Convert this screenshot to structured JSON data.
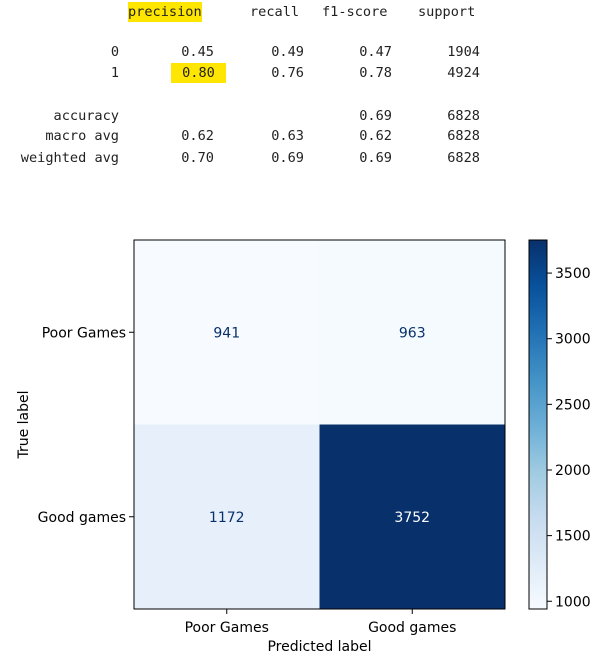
{
  "report": {
    "headers": [
      "precision",
      "recall",
      "f1-score",
      "support"
    ],
    "rows": [
      {
        "label": "0",
        "precision": "0.45",
        "recall": "0.49",
        "f1": "0.47",
        "support": "1904"
      },
      {
        "label": "1",
        "precision": "0.80",
        "recall": "0.76",
        "f1": "0.78",
        "support": "4924"
      }
    ],
    "accuracy": {
      "label": "accuracy",
      "f1": "0.69",
      "support": "6828"
    },
    "avgs": [
      {
        "label": "macro avg",
        "precision": "0.62",
        "recall": "0.63",
        "f1": "0.62",
        "support": "6828"
      },
      {
        "label": "weighted avg",
        "precision": "0.70",
        "recall": "0.69",
        "f1": "0.69",
        "support": "6828"
      }
    ],
    "highlight_color": "#ffe600"
  },
  "chart_data": {
    "type": "heatmap",
    "xlabel": "Predicted label",
    "ylabel": "True label",
    "x_categories": [
      "Poor Games",
      "Good games"
    ],
    "y_categories": [
      "Poor Games",
      "Good games"
    ],
    "values": [
      [
        941,
        963
      ],
      [
        1172,
        3752
      ]
    ],
    "colormap": "Blues",
    "colorbar": {
      "min": 941,
      "max": 3752,
      "ticks": [
        1000,
        1500,
        2000,
        2500,
        3000,
        3500
      ]
    }
  }
}
